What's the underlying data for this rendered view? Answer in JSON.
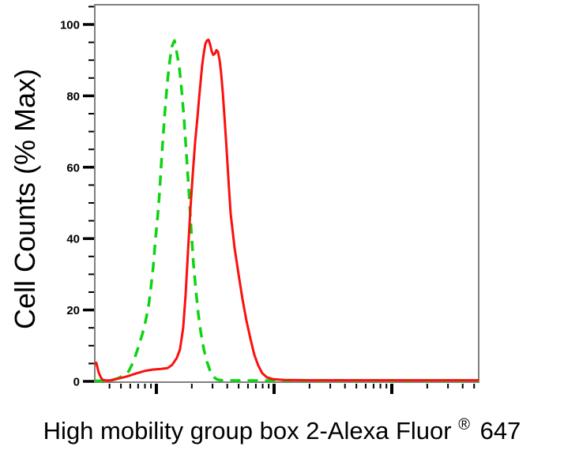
{
  "figure": {
    "y_axis_title": "Cell Counts (% Max)",
    "x_axis_label_main": "High mobility group box 2-Alexa Fluor",
    "x_axis_label_sup": "®",
    "x_axis_label_suffix": "647"
  },
  "colors": {
    "red_series": "#fa100d",
    "green_series": "#0cd412",
    "plot_border": "#808080",
    "tick": "#000000",
    "text": "#000000",
    "background": "#ffffff"
  },
  "chart_data": {
    "type": "line",
    "title": "",
    "xlabel": "High mobility group box 2-Alexa Fluor® 647",
    "ylabel": "Cell Counts (% Max)",
    "x_scale": "log10",
    "x_range_log10": [
      0.477,
      3.738
    ],
    "x_major_ticks_log10": [
      1,
      2,
      3
    ],
    "x_tick_labels_shown": false,
    "ylim": [
      0,
      105.5
    ],
    "y_major_ticks": [
      0,
      20,
      40,
      60,
      80,
      100
    ],
    "y_minor_tick_step": 5,
    "grid": false,
    "legend": "none",
    "series": [
      {
        "name": "green-dashed-curve",
        "style": "dashed",
        "color": "#0cd412",
        "points": [
          [
            0.477,
            0.1
          ],
          [
            0.611,
            0.2
          ],
          [
            0.678,
            0.9
          ],
          [
            0.725,
            1.8
          ],
          [
            0.765,
            2.8
          ],
          [
            0.805,
            5.5
          ],
          [
            0.846,
            9.5
          ],
          [
            0.879,
            13
          ],
          [
            0.906,
            16.5
          ],
          [
            0.933,
            21
          ],
          [
            0.953,
            26
          ],
          [
            0.973,
            32
          ],
          [
            0.993,
            40
          ],
          [
            1.013,
            47
          ],
          [
            1.027,
            53
          ],
          [
            1.04,
            60
          ],
          [
            1.054,
            67
          ],
          [
            1.067,
            73
          ],
          [
            1.081,
            79
          ],
          [
            1.094,
            84
          ],
          [
            1.107,
            88
          ],
          [
            1.121,
            91.5
          ],
          [
            1.134,
            94
          ],
          [
            1.154,
            95.5
          ],
          [
            1.174,
            92
          ],
          [
            1.195,
            88
          ],
          [
            1.215,
            81.5
          ],
          [
            1.235,
            73.5
          ],
          [
            1.255,
            64
          ],
          [
            1.275,
            54
          ],
          [
            1.295,
            43
          ],
          [
            1.315,
            33
          ],
          [
            1.336,
            25.5
          ],
          [
            1.356,
            19
          ],
          [
            1.376,
            14
          ],
          [
            1.403,
            9
          ],
          [
            1.43,
            5.5
          ],
          [
            1.456,
            3
          ],
          [
            1.483,
            1.3
          ],
          [
            1.517,
            0.5
          ],
          [
            1.564,
            0.25
          ],
          [
            1.953,
            0.2
          ],
          [
            2.557,
            0.25
          ],
          [
            3.161,
            0.2
          ],
          [
            3.738,
            0.2
          ]
        ]
      },
      {
        "name": "red-solid-curve",
        "style": "solid",
        "color": "#fa100d",
        "points": [
          [
            0.477,
            4.8
          ],
          [
            0.49,
            5.2
          ],
          [
            0.51,
            2.5
          ],
          [
            0.53,
            1.0
          ],
          [
            0.545,
            0.4
          ],
          [
            0.58,
            0.25
          ],
          [
            0.611,
            0.3
          ],
          [
            0.678,
            0.8
          ],
          [
            0.752,
            1.4
          ],
          [
            0.826,
            2.2
          ],
          [
            0.899,
            2.9
          ],
          [
            0.966,
            3.3
          ],
          [
            1.04,
            3.5
          ],
          [
            1.094,
            3.7
          ],
          [
            1.134,
            4.6
          ],
          [
            1.174,
            6.6
          ],
          [
            1.201,
            9
          ],
          [
            1.228,
            15
          ],
          [
            1.248,
            24
          ],
          [
            1.268,
            36
          ],
          [
            1.289,
            48
          ],
          [
            1.309,
            58
          ],
          [
            1.329,
            67
          ],
          [
            1.349,
            74
          ],
          [
            1.362,
            79
          ],
          [
            1.376,
            84
          ],
          [
            1.389,
            88.5
          ],
          [
            1.403,
            92
          ],
          [
            1.416,
            94.5
          ],
          [
            1.43,
            95.5
          ],
          [
            1.443,
            95.7
          ],
          [
            1.456,
            94.5
          ],
          [
            1.47,
            92.5
          ],
          [
            1.483,
            91.5
          ],
          [
            1.497,
            91.8
          ],
          [
            1.51,
            92.8
          ],
          [
            1.523,
            92.4
          ],
          [
            1.537,
            90
          ],
          [
            1.55,
            86.5
          ],
          [
            1.564,
            81
          ],
          [
            1.577,
            75
          ],
          [
            1.591,
            68
          ],
          [
            1.604,
            61
          ],
          [
            1.617,
            54
          ],
          [
            1.631,
            47
          ],
          [
            1.664,
            37.5
          ],
          [
            1.698,
            30
          ],
          [
            1.732,
            23
          ],
          [
            1.765,
            17
          ],
          [
            1.799,
            12
          ],
          [
            1.832,
            7.5
          ],
          [
            1.866,
            4.4
          ],
          [
            1.899,
            2.3
          ],
          [
            1.94,
            1.1
          ],
          [
            1.993,
            0.6
          ],
          [
            2.087,
            0.4
          ],
          [
            2.289,
            0.3
          ],
          [
            2.691,
            0.3
          ],
          [
            3.228,
            0.3
          ],
          [
            3.738,
            0.3
          ]
        ]
      }
    ]
  }
}
